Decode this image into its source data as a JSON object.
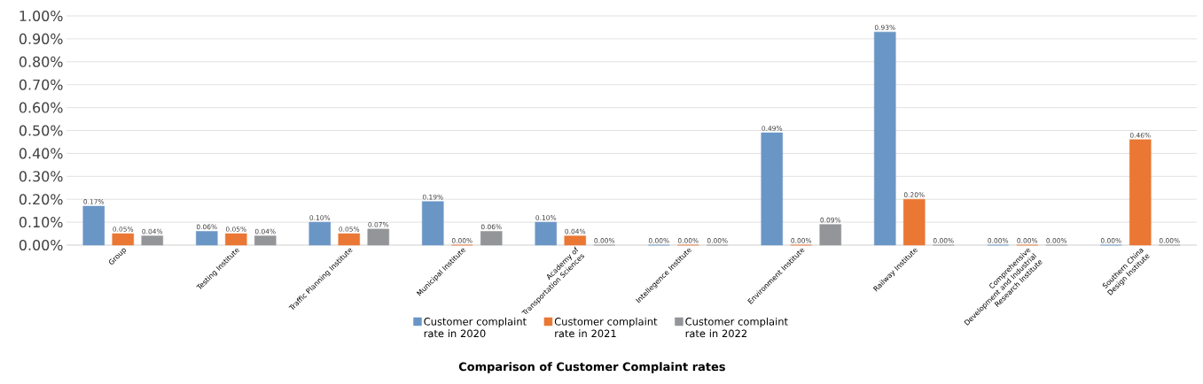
{
  "chart_data": {
    "type": "bar",
    "title": "Comparison of Customer Complaint rates",
    "categories": [
      "Group",
      "Testing Institute",
      "Traffic Planning Institute",
      "Municipal Institute",
      "Academy of Transportation Sciences",
      "Intellegence Institute",
      "Environment Institute",
      "Railway Institute",
      "Comprehensive Development and Industrial Research Institute",
      "Southern China Design Institute"
    ],
    "series": [
      {
        "name": "Customer complaint rate in 2020",
        "color": "#6a96c6",
        "values": [
          0.17,
          0.06,
          0.1,
          0.19,
          0.1,
          0.0,
          0.49,
          0.93,
          0.0,
          0.0
        ],
        "value_labels": [
          "0.17%",
          "0.06%",
          "0.10%",
          "0.19%",
          "0.10%",
          "0.00%",
          "0.49%",
          "0.93%",
          "0.00%",
          "0.00%"
        ]
      },
      {
        "name": "Customer complaint rate in 2021",
        "color": "#ea7733",
        "values": [
          0.05,
          0.05,
          0.05,
          0.0,
          0.04,
          0.0,
          0.0,
          0.2,
          0.0,
          0.46
        ],
        "value_labels": [
          "0.05%",
          "0.05%",
          "0.05%",
          "0.00%",
          "0.04%",
          "0.00%",
          "0.00%",
          "0.20%",
          "0.00%",
          "0.46%"
        ]
      },
      {
        "name": "Customer complaint rate in 2022",
        "color": "#939598",
        "values": [
          0.04,
          0.04,
          0.07,
          0.06,
          0.0,
          0.0,
          0.09,
          0.0,
          0.0,
          0.0
        ],
        "value_labels": [
          "0.04%",
          "0.04%",
          "0.07%",
          "0.06%",
          "0.00%",
          "0.00%",
          "0.09%",
          "0.00%",
          "0.00%",
          "0.00%"
        ]
      }
    ],
    "ylim": [
      0,
      1
    ],
    "yticks": [
      {
        "value": 0,
        "label": "0.00%"
      },
      {
        "value": 0.1,
        "label": "0.10%"
      },
      {
        "value": 0.2,
        "label": "0.20%"
      },
      {
        "value": 0.3,
        "label": "0.30%"
      },
      {
        "value": 0.4,
        "label": "0.40%"
      },
      {
        "value": 0.5,
        "label": "0.50%"
      },
      {
        "value": 0.6,
        "label": "0.60%"
      },
      {
        "value": 0.7,
        "label": "0.70%"
      },
      {
        "value": 0.8,
        "label": "0.80%"
      },
      {
        "value": 0.9,
        "label": "0.90%"
      },
      {
        "value": 1,
        "label": "1.00%"
      }
    ],
    "grid": "y",
    "legend": "bottom"
  }
}
